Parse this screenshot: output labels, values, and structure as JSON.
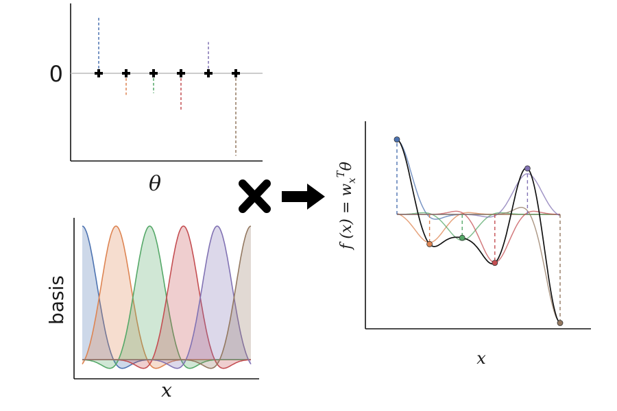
{
  "theta_panel": {
    "zero_label": "0",
    "xlabel": "θ",
    "theta_values": [
      1.0,
      -0.38,
      -0.35,
      -0.65,
      0.55,
      -1.45
    ]
  },
  "basis_panel": {
    "ylabel": "basis",
    "xlabel": "x",
    "num_basis": 6
  },
  "output_panel": {
    "ylabel": "f (x) = w",
    "ylabel_sub": "x",
    "ylabel_sup": "T",
    "ylabel_theta": "θ",
    "xlabel": "x"
  },
  "series_colors": [
    "#4c72b0",
    "#dd8452",
    "#55a868",
    "#c44e52",
    "#8172b3",
    "#937860"
  ],
  "combined_color": "#111111",
  "operators": {
    "multiply": "✖",
    "arrow": "➜"
  }
}
